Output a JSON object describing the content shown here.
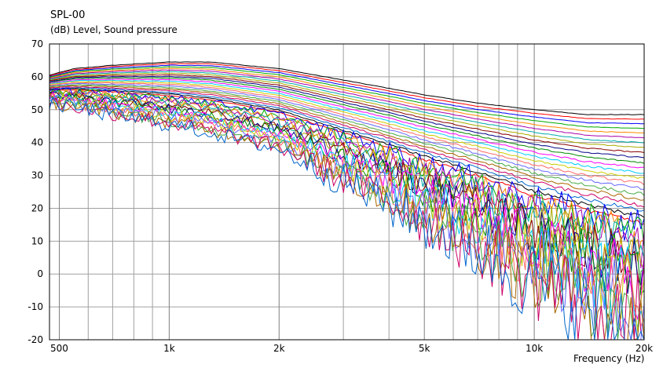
{
  "chart_data": {
    "type": "line",
    "title": "SPL-00",
    "ylabel": "(dB)  Level, Sound pressure",
    "xlabel": "Frequency  (Hz)",
    "xscale": "log",
    "xlim": [
      470,
      20000
    ],
    "ylim": [
      -20,
      70
    ],
    "y_ticks": [
      70,
      60,
      50,
      40,
      30,
      20,
      10,
      0,
      -10,
      -20
    ],
    "x_tick_labels": [
      {
        "value": 500,
        "label": "500"
      },
      {
        "value": 1000,
        "label": "1k"
      },
      {
        "value": 2000,
        "label": "2k"
      },
      {
        "value": 5000,
        "label": "5k"
      },
      {
        "value": 10000,
        "label": "10k"
      },
      {
        "value": 20000,
        "label": "20k"
      }
    ],
    "x_minor_gridlines": [
      600,
      700,
      800,
      900,
      3000,
      4000,
      6000,
      7000,
      8000,
      9000
    ],
    "grid": true,
    "series_count": 40,
    "series_sample_frequencies": [
      470,
      550,
      700,
      1000,
      1300,
      2000,
      3000,
      4000,
      5000,
      7000,
      10000,
      14000,
      20000
    ],
    "series_envelope": [
      {
        "name_hint": "top",
        "values": [
          60.5,
          62.5,
          63.5,
          64.5,
          64.5,
          62.5,
          59.0,
          56.5,
          54.5,
          52.0,
          50.0,
          48.5,
          48.5
        ]
      },
      {
        "name_hint": "bottom",
        "values": [
          52.0,
          50.5,
          48.5,
          45.5,
          43.0,
          38.0,
          30.5,
          25.5,
          21.0,
          15.0,
          7.0,
          1.0,
          -5.0
        ]
      }
    ],
    "series_colors": [
      "#000000",
      "#ff0000",
      "#0000ff",
      "#00aa00",
      "#ff8800",
      "#aa00aa",
      "#00aaaa",
      "#aaaa00",
      "#880000",
      "#000088",
      "#008800",
      "#ff00ff",
      "#00ccff",
      "#cccc00",
      "#ff6666",
      "#6666ff",
      "#44aa44",
      "#aa6600",
      "#cc0066",
      "#0066cc"
    ]
  }
}
